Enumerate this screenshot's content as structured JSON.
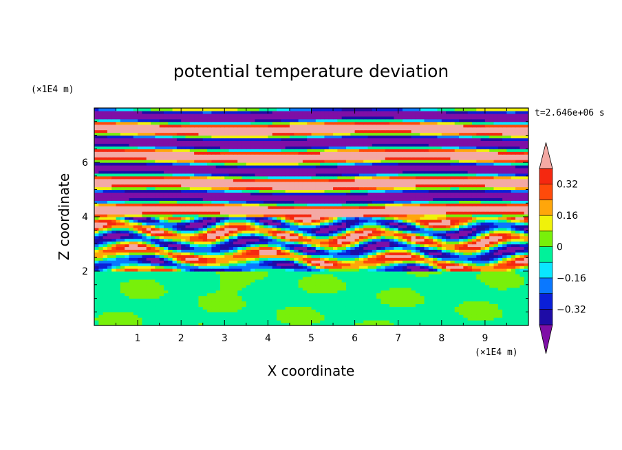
{
  "chart_data": {
    "type": "heatmap",
    "title": "potential temperature deviation",
    "xlabel": "X coordinate",
    "ylabel": "Z coordinate",
    "x_unit": "(×1E4 m)",
    "y_unit": "(×1E4 m)",
    "time_label": "t=2.646e+06 s",
    "xlim": [
      0,
      10
    ],
    "ylim": [
      0,
      8
    ],
    "x_ticks": [
      "1",
      "2",
      "3",
      "4",
      "5",
      "6",
      "7",
      "8",
      "9"
    ],
    "y_ticks": [
      "2",
      "4",
      "6"
    ],
    "colorbar": {
      "levels": [
        -0.4,
        -0.32,
        -0.24,
        -0.16,
        -0.08,
        0,
        0.08,
        0.16,
        0.24,
        0.32,
        0.4
      ],
      "tick_labels": [
        "0.32",
        "0.16",
        "0",
        "−0.16",
        "−0.32"
      ],
      "colors": [
        "#7e0fa6",
        "#1e0ca6",
        "#0a1fd8",
        "#0a78ff",
        "#0ae6ff",
        "#00f29a",
        "#78f00a",
        "#f0f20a",
        "#ffa60a",
        "#ff4a0a",
        "#f52810",
        "#f4a9a4"
      ]
    }
  }
}
